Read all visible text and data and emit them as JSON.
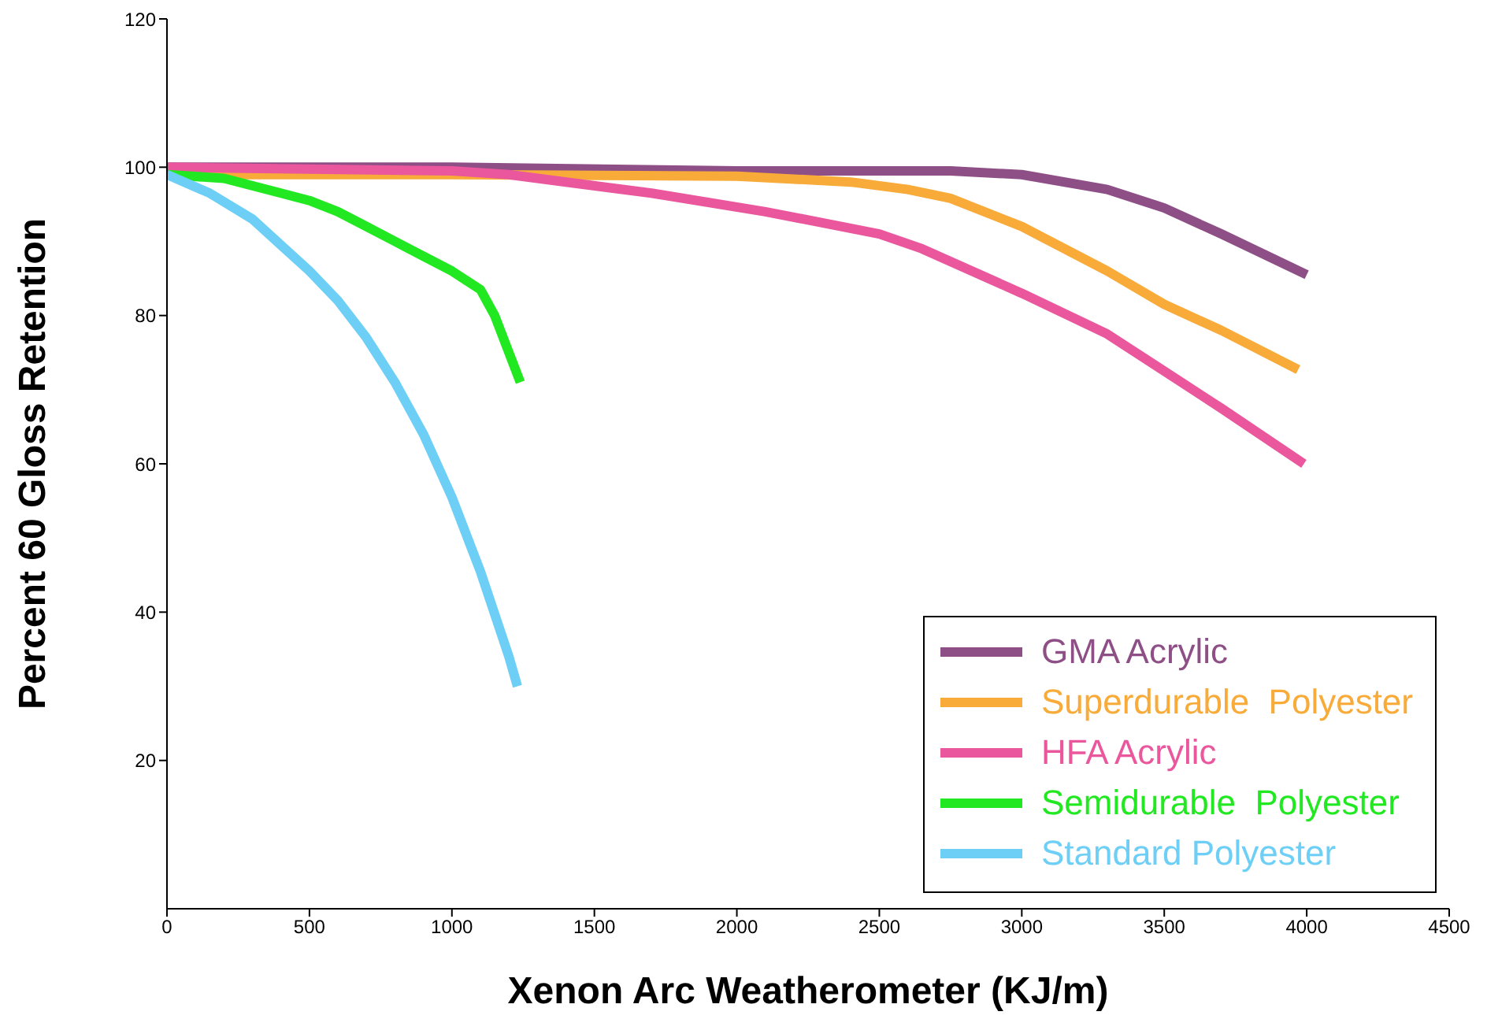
{
  "chart_data": {
    "type": "line",
    "xlabel": "Xenon Arc Weatherometer (KJ/m)",
    "ylabel": "Percent 60 Gloss  Retention",
    "xlim": [
      0,
      4500
    ],
    "xticks": [
      0,
      500,
      1000,
      1500,
      2000,
      2500,
      3000,
      3500,
      4000,
      4500
    ],
    "ylim": [
      0,
      120
    ],
    "yticks": [
      20,
      40,
      60,
      80,
      100,
      120
    ],
    "grid": false,
    "legend": "bottom right",
    "marker": "none",
    "line_style": "solid",
    "series": [
      {
        "name": "GMA Acrylic",
        "color": "#8e4f86",
        "x": [
          0,
          1000,
          2000,
          2750,
          3000,
          3300,
          3500,
          3700,
          4000
        ],
        "values": [
          100,
          100,
          99.5,
          99.5,
          99,
          97,
          94.5,
          91,
          85.5
        ]
      },
      {
        "name": "Superdurable  Polyester",
        "color": "#f9ab3a",
        "x": [
          0,
          1000,
          2000,
          2400,
          2600,
          2750,
          3000,
          3300,
          3500,
          3700,
          3970
        ],
        "values": [
          99,
          99,
          98.8,
          98,
          97,
          95.8,
          92,
          86,
          81.5,
          78,
          72.7
        ]
      },
      {
        "name": "HFA Acrylic",
        "color": "#ea579d",
        "x": [
          0,
          1000,
          1200,
          1700,
          2100,
          2500,
          2650,
          3000,
          3300,
          3500,
          3700,
          3990
        ],
        "values": [
          100,
          99.5,
          99,
          96.5,
          94,
          91,
          89,
          83,
          77.5,
          72.5,
          67.5,
          60
        ]
      },
      {
        "name": "Semidurable  Polyester",
        "color": "#22e822",
        "x": [
          0,
          200,
          400,
          500,
          600,
          700,
          800,
          900,
          1000,
          1100,
          1150,
          1240
        ],
        "values": [
          99,
          98.5,
          96.5,
          95.5,
          94,
          92,
          90,
          88,
          86,
          83.5,
          80,
          71
        ]
      },
      {
        "name": "Standard Polyester",
        "color": "#6ecff6",
        "x": [
          0,
          150,
          300,
          400,
          500,
          600,
          700,
          800,
          900,
          1000,
          1100,
          1200,
          1230
        ],
        "values": [
          99,
          96.5,
          93,
          89.5,
          86,
          82,
          77,
          71,
          64,
          55.5,
          45.5,
          34,
          30
        ]
      }
    ]
  }
}
